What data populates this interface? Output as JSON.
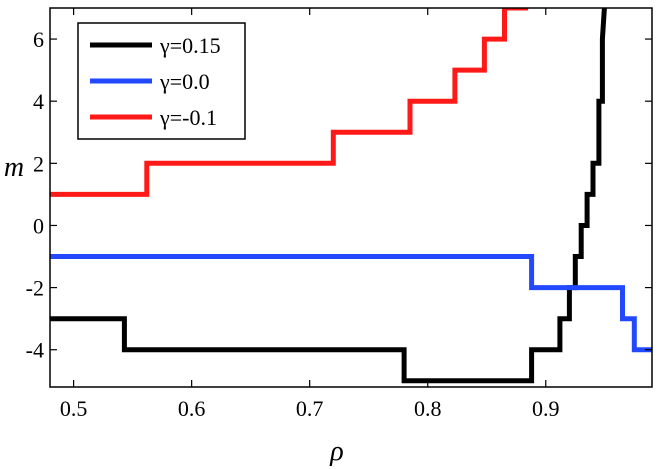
{
  "chart_data": {
    "type": "line",
    "xlabel": "ρ",
    "ylabel": "m",
    "xlim": [
      0.48,
      0.99
    ],
    "ylim": [
      -5.2,
      7
    ],
    "xticks": [
      0.5,
      0.6,
      0.7,
      0.8,
      0.9
    ],
    "xtick_labels": [
      "0.5",
      "0.6",
      "0.7",
      "0.8",
      "0.9"
    ],
    "yticks": [
      -4,
      -2,
      0,
      2,
      4,
      6
    ],
    "ytick_labels": [
      "-4",
      "-2",
      "0",
      "2",
      "4",
      "6"
    ],
    "grid": false,
    "legend_position": "top-left",
    "series": [
      {
        "name": "γ=0.15",
        "color": "#000000",
        "x": [
          0.48,
          0.543,
          0.543,
          0.78,
          0.78,
          0.888,
          0.888,
          0.912,
          0.912,
          0.92,
          0.92,
          0.925,
          0.925,
          0.93,
          0.93,
          0.935,
          0.935,
          0.94,
          0.94,
          0.945,
          0.945,
          0.948,
          0.948,
          0.95
        ],
        "y": [
          -3,
          -3,
          -4,
          -4,
          -5,
          -5,
          -4,
          -4,
          -3,
          -3,
          -2,
          -2,
          -1,
          -1,
          0,
          0,
          1,
          1,
          2,
          2,
          4,
          4,
          6,
          7.2
        ]
      },
      {
        "name": "γ=0.0",
        "color": "#2249ff",
        "x": [
          0.48,
          0.888,
          0.888,
          0.965,
          0.965,
          0.975,
          0.975,
          0.99
        ],
        "y": [
          -1,
          -1,
          -2,
          -2,
          -3,
          -3,
          -4,
          -4
        ]
      },
      {
        "name": "γ=-0.1",
        "color": "#ff1a1a",
        "x": [
          0.48,
          0.562,
          0.562,
          0.72,
          0.72,
          0.785,
          0.785,
          0.823,
          0.823,
          0.848,
          0.848,
          0.865,
          0.865,
          0.878,
          0.878,
          0.885
        ],
        "y": [
          1,
          1,
          2,
          2,
          3,
          3,
          4,
          4,
          5,
          5,
          6,
          6,
          7,
          7,
          7,
          7
        ]
      }
    ]
  }
}
